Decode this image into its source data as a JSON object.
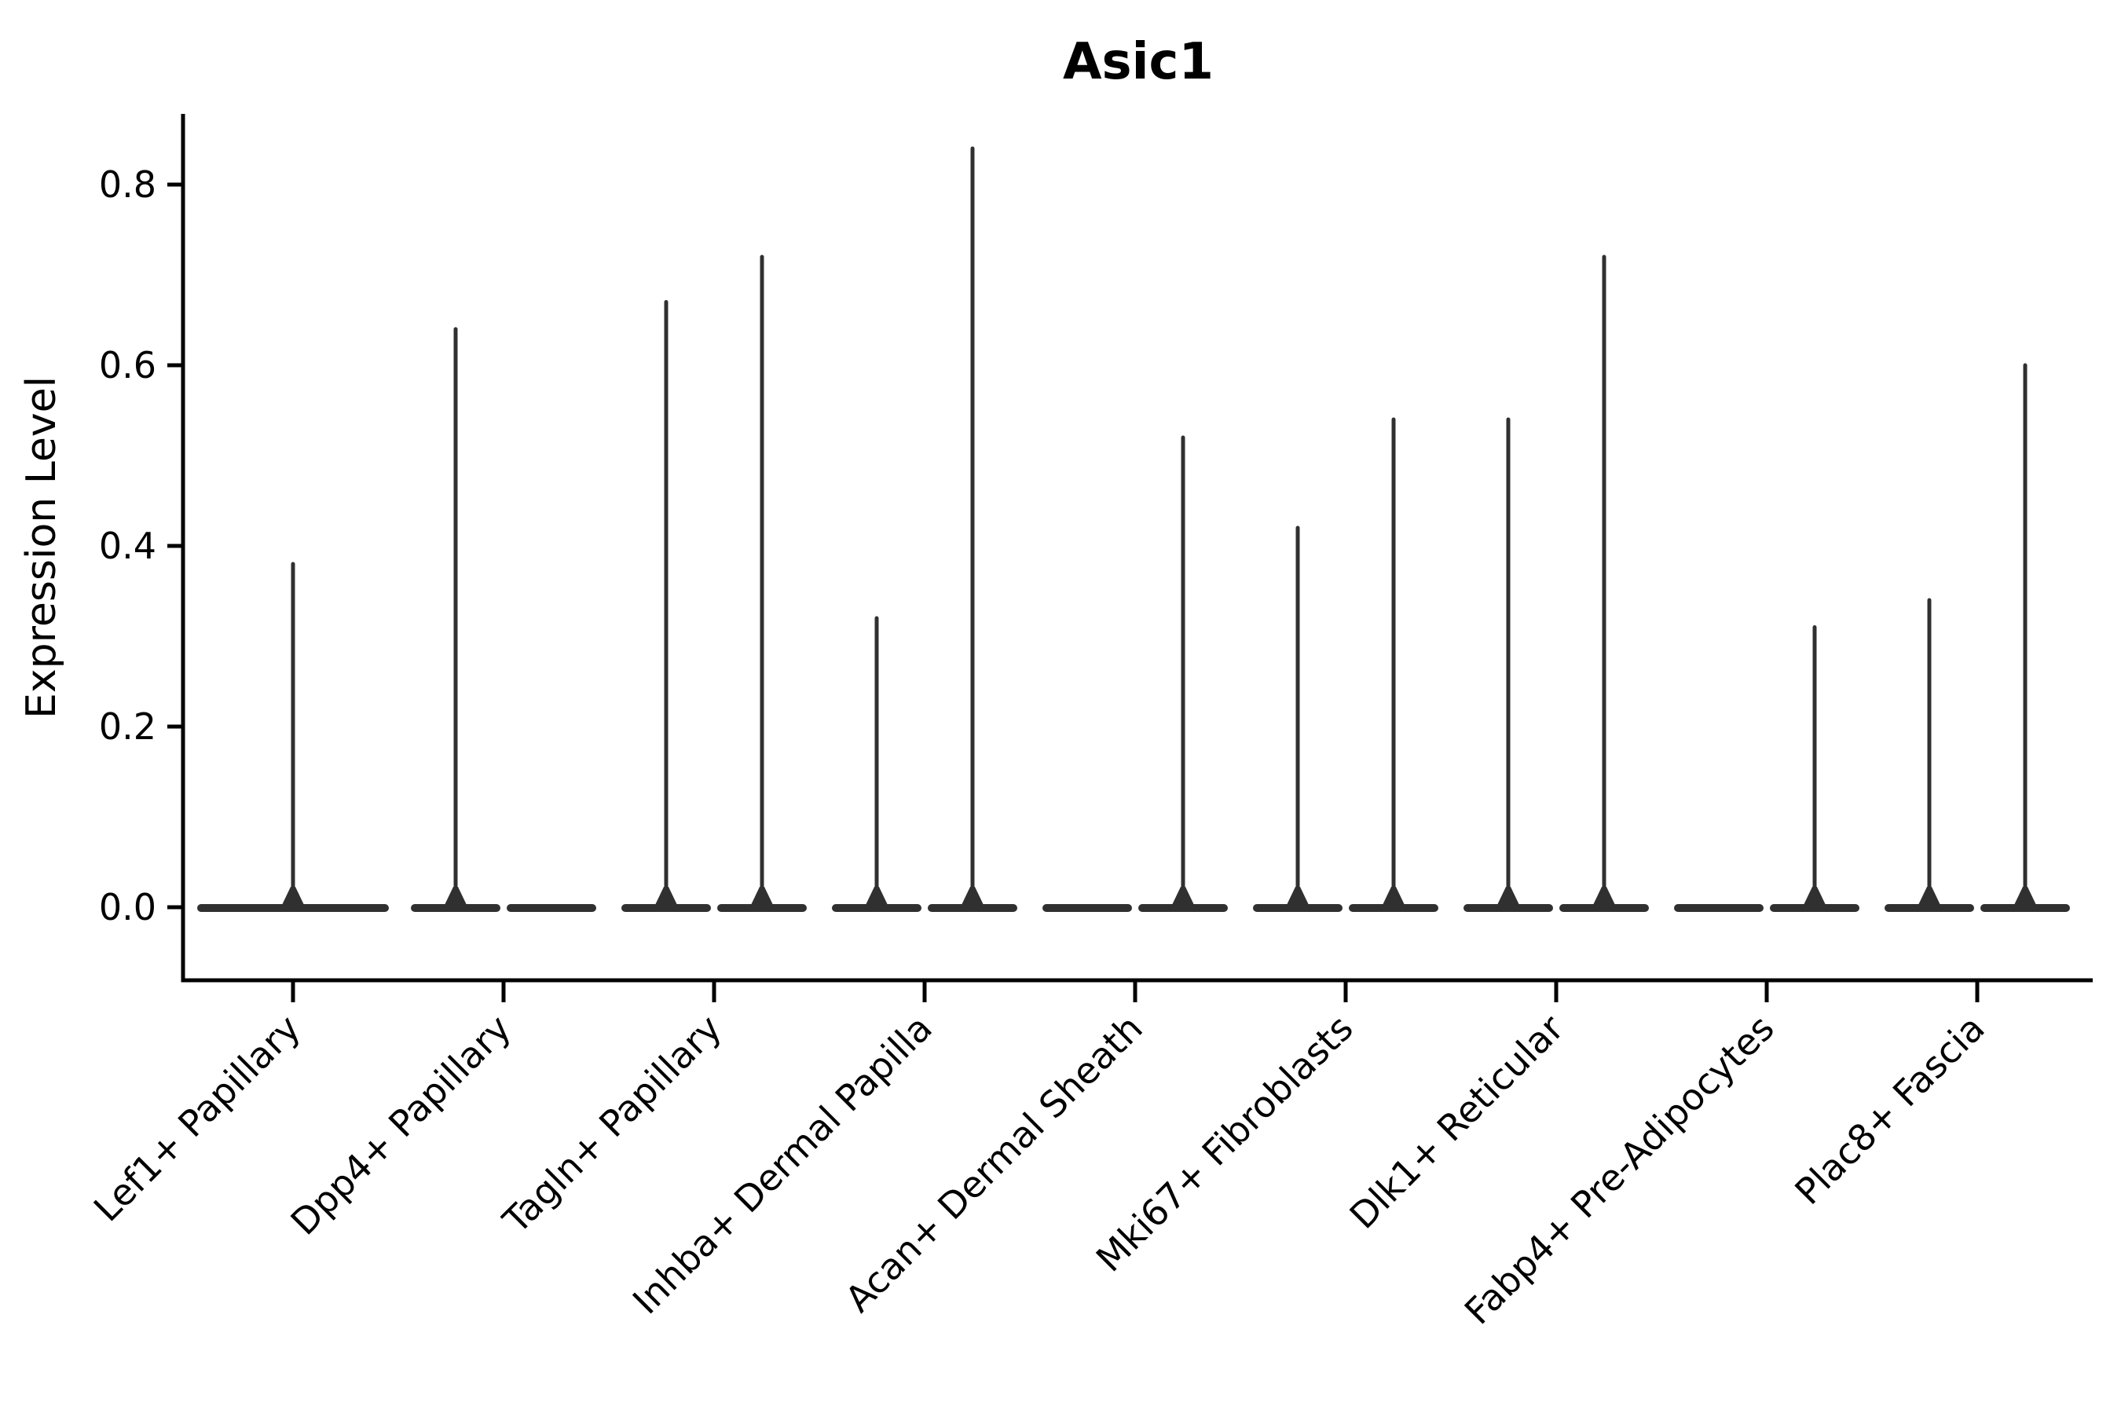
{
  "title": "Asic1",
  "y_axis": {
    "label": "Expression Level",
    "tick_labels": [
      "0.0",
      "0.2",
      "0.4",
      "0.6",
      "0.8"
    ]
  },
  "chart_data": {
    "type": "violin",
    "title": "Asic1",
    "xlabel": "",
    "ylabel": "Expression Level",
    "ylim": [
      -0.08,
      0.88
    ],
    "y_ticks": [
      0.0,
      0.2,
      0.4,
      0.6,
      0.8
    ],
    "grid": false,
    "legend_position": "none",
    "colors": {
      "violin_stroke": "#303030",
      "axis": "#000000",
      "background": "#ffffff"
    },
    "categories": [
      "Lef1+ Papillary",
      "Dpp4+ Papillary",
      "Tagln+ Papillary",
      "Inhba+ Dermal Papilla",
      "Acan+ Dermal Sheath",
      "Mki67+ Fibroblasts",
      "Dlk1+ Reticular",
      "Fabp4+ Pre-Adipocytes",
      "Plac8+ Fascia"
    ],
    "violins": [
      {
        "category": "Lef1+ Papillary",
        "groups": [
          {
            "position": "center",
            "max_expression": 0.38
          }
        ]
      },
      {
        "category": "Dpp4+ Papillary",
        "groups": [
          {
            "position": "left",
            "max_expression": 0.64
          },
          {
            "position": "right",
            "max_expression": 0.0
          }
        ]
      },
      {
        "category": "Tagln+ Papillary",
        "groups": [
          {
            "position": "left",
            "max_expression": 0.67
          },
          {
            "position": "right",
            "max_expression": 0.72
          }
        ]
      },
      {
        "category": "Inhba+ Dermal Papilla",
        "groups": [
          {
            "position": "left",
            "max_expression": 0.32
          },
          {
            "position": "right",
            "max_expression": 0.84
          }
        ]
      },
      {
        "category": "Acan+ Dermal Sheath",
        "groups": [
          {
            "position": "left",
            "max_expression": 0.0
          },
          {
            "position": "right",
            "max_expression": 0.52
          }
        ]
      },
      {
        "category": "Mki67+ Fibroblasts",
        "groups": [
          {
            "position": "left",
            "max_expression": 0.42
          },
          {
            "position": "right",
            "max_expression": 0.54
          }
        ]
      },
      {
        "category": "Dlk1+ Reticular",
        "groups": [
          {
            "position": "left",
            "max_expression": 0.54
          },
          {
            "position": "right",
            "max_expression": 0.72
          }
        ]
      },
      {
        "category": "Fabp4+ Pre-Adipocytes",
        "groups": [
          {
            "position": "left",
            "max_expression": 0.0
          },
          {
            "position": "right",
            "max_expression": 0.31
          }
        ]
      },
      {
        "category": "Plac8+ Fascia",
        "groups": [
          {
            "position": "left",
            "max_expression": 0.34
          },
          {
            "position": "right",
            "max_expression": 0.6
          }
        ]
      }
    ]
  }
}
